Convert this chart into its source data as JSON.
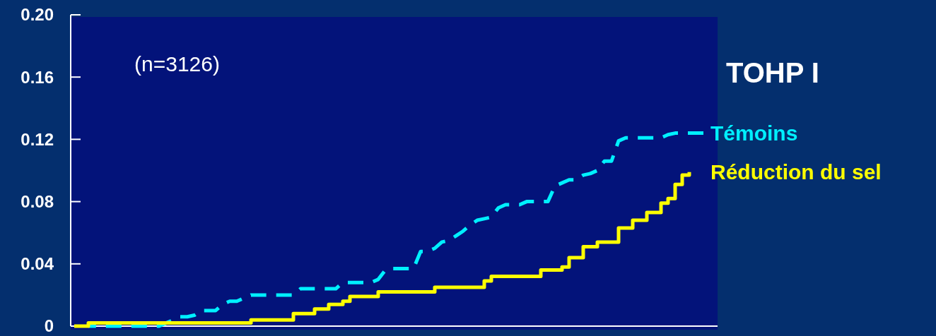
{
  "chart_data": {
    "type": "step",
    "title": "TOHP I",
    "annotations": [
      "(n=3126)"
    ],
    "categories": [
      null,
      null,
      null,
      null,
      null,
      null,
      null,
      null,
      null,
      null,
      null,
      null,
      null,
      null,
      null,
      null,
      null,
      null,
      null,
      null,
      null,
      null,
      null,
      null,
      null,
      null,
      null,
      null,
      null,
      null,
      null,
      null,
      null,
      null,
      null,
      null,
      null,
      null,
      null,
      null,
      null,
      null,
      null,
      null,
      null,
      null,
      null,
      null,
      null,
      null,
      null,
      null,
      null,
      null,
      null,
      null,
      null,
      null,
      null,
      null,
      null,
      null,
      null,
      null,
      null,
      null,
      null,
      null,
      null,
      null,
      null,
      null,
      null,
      null,
      null,
      null,
      null,
      null,
      null,
      null,
      null,
      null,
      null,
      null,
      null,
      null,
      null,
      null,
      null,
      null
    ],
    "ylim": [
      0,
      0.2
    ],
    "yticks": [
      0,
      0.04,
      0.08,
      0.12,
      0.16,
      {
        "value": 0.2,
        "label": "0.20"
      }
    ],
    "legend": false,
    "grid": false,
    "series": [
      {
        "name": "Témoins",
        "type": "line",
        "line_style": "dashed",
        "color": "#00f0ff",
        "values": [
          null,
          null,
          0,
          0,
          0,
          0,
          0,
          0,
          0,
          0,
          0,
          0,
          0,
          0.002,
          0.004,
          0.006,
          0.006,
          0.007,
          0.01,
          0.01,
          0.01,
          0.014,
          0.016,
          0.016,
          0.018,
          0.02,
          0.02,
          0.02,
          0.02,
          0.02,
          0.02,
          0.02,
          0.024,
          0.024,
          0.024,
          0.024,
          0.024,
          0.024,
          0.028,
          0.028,
          0.028,
          0.028,
          0.028,
          0.03,
          0.036,
          0.037,
          0.037,
          0.037,
          0.037,
          0.048,
          0.048,
          0.05,
          0.054,
          0.055,
          0.058,
          0.061,
          0.065,
          0.068,
          0.069,
          0.07,
          0.076,
          0.078,
          0.078,
          0.078,
          0.08,
          0.08,
          0.08,
          0.08,
          0.09,
          0.092,
          0.094,
          0.094,
          0.097,
          0.098,
          0.1,
          0.106,
          0.106,
          0.119,
          0.121,
          0.121,
          0.121,
          0.121,
          0.121,
          0.121,
          0.123,
          0.124,
          0.124,
          0.124,
          0.124,
          0.124
        ]
      },
      {
        "name": "Réduction du sel",
        "line_style": "solid",
        "color": "#ffff00",
        "values": [
          0,
          0,
          0.002,
          0.002,
          0.002,
          0.002,
          0.002,
          0.002,
          0.002,
          0.002,
          0.002,
          0.002,
          0.002,
          0.002,
          0.002,
          0.002,
          0.002,
          0.002,
          0.002,
          0.002,
          0.002,
          0.002,
          0.002,
          0.002,
          0.002,
          0.004,
          0.004,
          0.004,
          0.004,
          0.004,
          0.004,
          0.008,
          0.008,
          0.008,
          0.011,
          0.011,
          0.014,
          0.014,
          0.016,
          0.019,
          0.019,
          0.019,
          0.019,
          0.022,
          0.022,
          0.022,
          0.022,
          0.022,
          0.022,
          0.022,
          0.022,
          0.025,
          0.025,
          0.025,
          0.025,
          0.025,
          0.025,
          0.025,
          0.029,
          0.032,
          0.032,
          0.032,
          0.032,
          0.032,
          0.032,
          0.032,
          0.036,
          0.036,
          0.036,
          0.038,
          0.044,
          0.044,
          0.051,
          0.051,
          0.054,
          0.054,
          0.054,
          0.063,
          0.063,
          0.068,
          0.068,
          0.073,
          0.073,
          0.079,
          0.082,
          0.091,
          0.097,
          0.099,
          null,
          null
        ]
      }
    ]
  }
}
